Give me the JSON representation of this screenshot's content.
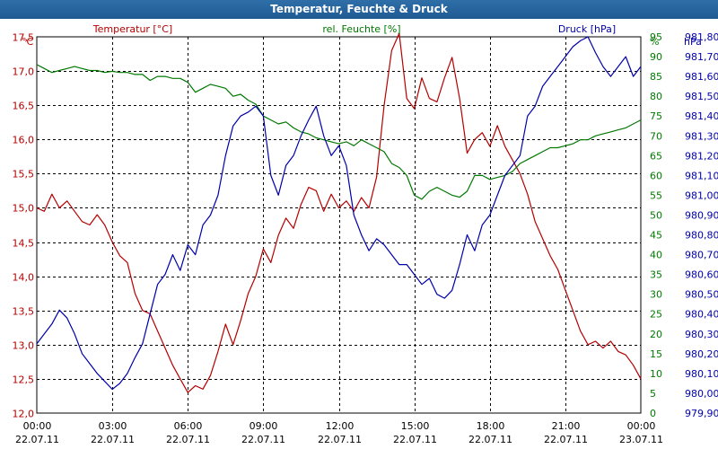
{
  "chart_data": {
    "type": "line",
    "title": "Temperatur, Feuchte & Druck",
    "x_tick_times": [
      "00:00",
      "03:00",
      "06:00",
      "09:00",
      "12:00",
      "15:00",
      "18:00",
      "21:00",
      "00:00"
    ],
    "x_tick_dates": [
      "22.07.11",
      "22.07.11",
      "22.07.11",
      "22.07.11",
      "22.07.11",
      "22.07.11",
      "22.07.11",
      "22.07.11",
      "23.07.11"
    ],
    "x_range_hours": [
      0,
      24
    ],
    "axes": {
      "temp": {
        "unit": "°C",
        "min": 12.0,
        "max": 17.5,
        "ticks": [
          "12,0",
          "12,5",
          "13,0",
          "13,5",
          "14,0",
          "14,5",
          "15,0",
          "15,5",
          "16,0",
          "16,5",
          "17,0",
          "17,5"
        ]
      },
      "hum": {
        "unit": "%",
        "min": 0,
        "max": 95,
        "ticks": [
          "0",
          "5",
          "10",
          "15",
          "20",
          "25",
          "30",
          "35",
          "40",
          "45",
          "50",
          "55",
          "60",
          "65",
          "70",
          "75",
          "80",
          "85",
          "90",
          "95"
        ]
      },
      "press": {
        "unit": "hPa",
        "min": 979.9,
        "max": 981.8,
        "ticks": [
          "979,90",
          "980,00",
          "980,10",
          "980,20",
          "980,30",
          "980,40",
          "980,50",
          "980,60",
          "980,70",
          "980,80",
          "980,90",
          "981,00",
          "981,10",
          "981,20",
          "981,30",
          "981,40",
          "981,50",
          "981,60",
          "981,70",
          "981,80"
        ]
      }
    },
    "legend": {
      "temp": "Temperatur [°C]",
      "hum": "rel. Feuchte [%]",
      "press": "Druck [hPa]"
    },
    "colors": {
      "temp": "#b40000",
      "hum": "#007800",
      "press": "#0000aa"
    },
    "series": [
      {
        "name": "Temperatur [°C]",
        "axis": "temp",
        "x": [
          0,
          0.3,
          0.6,
          0.9,
          1.2,
          1.5,
          1.8,
          2.1,
          2.4,
          2.7,
          3.0,
          3.3,
          3.6,
          3.9,
          4.2,
          4.5,
          4.8,
          5.1,
          5.4,
          5.7,
          6.0,
          6.3,
          6.6,
          6.9,
          7.2,
          7.5,
          7.8,
          8.1,
          8.4,
          8.7,
          9.0,
          9.3,
          9.6,
          9.9,
          10.2,
          10.5,
          10.8,
          11.1,
          11.4,
          11.7,
          12.0,
          12.3,
          12.6,
          12.9,
          13.2,
          13.5,
          13.8,
          14.1,
          14.4,
          14.7,
          15.0,
          15.3,
          15.6,
          15.9,
          16.2,
          16.5,
          16.8,
          17.1,
          17.4,
          17.7,
          18.0,
          18.3,
          18.6,
          18.9,
          19.2,
          19.5,
          19.8,
          20.1,
          20.4,
          20.7,
          21.0,
          21.3,
          21.6,
          21.9,
          22.2,
          22.5,
          22.8,
          23.1,
          23.4,
          23.7,
          24.0
        ],
        "values": [
          15.0,
          14.95,
          15.2,
          15.0,
          15.1,
          14.95,
          14.8,
          14.75,
          14.9,
          14.75,
          14.5,
          14.3,
          14.2,
          13.75,
          13.5,
          13.45,
          13.2,
          12.95,
          12.7,
          12.5,
          12.3,
          12.4,
          12.35,
          12.55,
          12.9,
          13.3,
          13.0,
          13.35,
          13.75,
          14.0,
          14.4,
          14.2,
          14.6,
          14.85,
          14.7,
          15.05,
          15.3,
          15.25,
          14.95,
          15.2,
          15.0,
          15.1,
          14.95,
          15.15,
          15.0,
          15.45,
          16.5,
          17.3,
          17.55,
          16.6,
          16.45,
          16.9,
          16.6,
          16.55,
          16.9,
          17.2,
          16.6,
          15.8,
          16.0,
          16.1,
          15.9,
          16.2,
          15.9,
          15.7,
          15.5,
          15.2,
          14.8,
          14.55,
          14.3,
          14.1,
          13.8,
          13.5,
          13.2,
          13.0,
          13.05,
          12.95,
          13.05,
          12.9,
          12.85,
          12.7,
          12.5
        ]
      },
      {
        "name": "rel. Feuchte [%]",
        "axis": "hum",
        "x": [
          0,
          0.3,
          0.6,
          0.9,
          1.2,
          1.5,
          1.8,
          2.1,
          2.4,
          2.7,
          3.0,
          3.3,
          3.6,
          3.9,
          4.2,
          4.5,
          4.8,
          5.1,
          5.4,
          5.7,
          6.0,
          6.3,
          6.6,
          6.9,
          7.2,
          7.5,
          7.8,
          8.1,
          8.4,
          8.7,
          9.0,
          9.3,
          9.6,
          9.9,
          10.2,
          10.5,
          10.8,
          11.1,
          11.4,
          11.7,
          12.0,
          12.3,
          12.6,
          12.9,
          13.2,
          13.5,
          13.8,
          14.1,
          14.4,
          14.7,
          15.0,
          15.3,
          15.6,
          15.9,
          16.2,
          16.5,
          16.8,
          17.1,
          17.4,
          17.7,
          18.0,
          18.3,
          18.6,
          18.9,
          19.2,
          19.5,
          19.8,
          20.1,
          20.4,
          20.7,
          21.0,
          21.3,
          21.6,
          21.9,
          22.2,
          22.5,
          22.8,
          23.1,
          23.4,
          23.7,
          24.0
        ],
        "values": [
          88,
          87,
          86,
          86.5,
          87,
          87.5,
          87,
          86.5,
          86.5,
          86,
          86.3,
          86,
          86,
          85.5,
          85.5,
          84,
          85,
          85,
          84.5,
          84.5,
          83.5,
          81,
          82,
          83,
          82.5,
          82,
          80,
          80.5,
          79,
          78,
          75,
          74,
          73,
          73.5,
          72,
          71,
          70.5,
          69.5,
          69,
          68.5,
          68,
          68.5,
          67.5,
          69,
          68,
          67,
          66,
          63,
          62,
          60,
          55,
          54,
          56,
          57,
          56,
          55,
          54.5,
          56,
          60,
          60,
          59,
          59.5,
          60,
          61,
          63,
          64,
          65,
          66,
          67,
          67,
          67.5,
          68,
          69,
          69,
          70,
          70.5,
          71,
          71.5,
          72,
          73,
          74
        ]
      },
      {
        "name": "Druck [hPa]",
        "axis": "press",
        "x": [
          0,
          0.3,
          0.6,
          0.9,
          1.2,
          1.5,
          1.8,
          2.1,
          2.4,
          2.7,
          3.0,
          3.3,
          3.6,
          3.9,
          4.2,
          4.5,
          4.8,
          5.1,
          5.4,
          5.7,
          6.0,
          6.3,
          6.6,
          6.9,
          7.2,
          7.5,
          7.8,
          8.1,
          8.4,
          8.7,
          9.0,
          9.3,
          9.6,
          9.9,
          10.2,
          10.5,
          10.8,
          11.1,
          11.4,
          11.7,
          12.0,
          12.3,
          12.6,
          12.9,
          13.2,
          13.5,
          13.8,
          14.1,
          14.4,
          14.7,
          15.0,
          15.3,
          15.6,
          15.9,
          16.2,
          16.5,
          16.8,
          17.1,
          17.4,
          17.7,
          18.0,
          18.3,
          18.6,
          18.9,
          19.2,
          19.5,
          19.8,
          20.1,
          20.4,
          20.7,
          21.0,
          21.3,
          21.6,
          21.9,
          22.2,
          22.5,
          22.8,
          23.1,
          23.4,
          23.7,
          24.0
        ],
        "values": [
          980.25,
          980.3,
          980.35,
          980.42,
          980.38,
          980.3,
          980.2,
          980.15,
          980.1,
          980.06,
          980.02,
          980.05,
          980.1,
          980.18,
          980.25,
          980.4,
          980.55,
          980.6,
          980.7,
          980.62,
          980.75,
          980.7,
          980.85,
          980.9,
          981.0,
          981.2,
          981.35,
          981.4,
          981.42,
          981.45,
          981.4,
          981.1,
          981.0,
          981.15,
          981.2,
          981.3,
          981.38,
          981.45,
          981.3,
          981.2,
          981.25,
          981.15,
          980.9,
          980.8,
          980.72,
          980.78,
          980.75,
          980.7,
          980.65,
          980.65,
          980.6,
          980.55,
          980.58,
          980.5,
          980.48,
          980.52,
          980.65,
          980.8,
          980.72,
          980.85,
          980.9,
          981.0,
          981.1,
          981.15,
          981.2,
          981.4,
          981.45,
          981.55,
          981.6,
          981.65,
          981.7,
          981.75,
          981.78,
          981.8,
          981.72,
          981.65,
          981.6,
          981.65,
          981.7,
          981.6,
          981.65
        ]
      }
    ]
  }
}
